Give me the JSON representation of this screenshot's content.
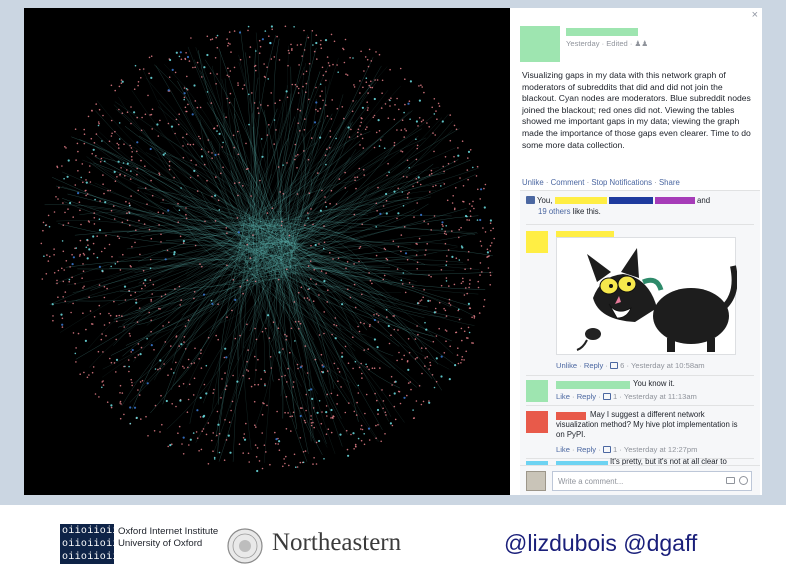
{
  "graph": {
    "colors": {
      "background": "#000000",
      "edge": "#5fb8b4",
      "node": "#e8808a",
      "cyan_node": "#6ee3e6",
      "blue_node": "#3b7dd8"
    }
  },
  "post": {
    "meta": "Yesterday · Edited · ",
    "text": "Visualizing gaps in my data with this network graph of moderators of subreddits that did and did not join the blackout. Cyan nodes are moderators. Blue subreddit nodes joined the blackout; red ones did not. Viewing the tables showed me important gaps in my data; viewing the graph made the importance of those gaps even clearer. Time to do some more data collection.",
    "actions": [
      "Unlike",
      "Comment",
      "Stop Notifications",
      "Share"
    ],
    "redacted_colors": {
      "green": "#9ee5b0",
      "yellow": "#ffee44",
      "blue": "#1e3a9e",
      "purple": "#a63cb8",
      "red": "#e85a4a",
      "cyan": "#6dd3f2",
      "cat_yellow": "#f6e84c"
    }
  },
  "likes": {
    "prefix": "You,",
    "and_word": "and",
    "others_link": "19 others",
    "suffix": "like this."
  },
  "comments": [
    {
      "meta": {
        "unlike": "Unlike",
        "reply": "Reply",
        "count": "6",
        "time": "Yesterday at 10:58am"
      }
    },
    {
      "text": "You know it.",
      "meta": {
        "like": "Like",
        "reply": "Reply",
        "count": "1",
        "time": "Yesterday at 11:13am"
      }
    },
    {
      "text": "May I suggest a different network visualization method? My hive plot implementation is on PyPI.",
      "meta": {
        "like": "Like",
        "reply": "Reply",
        "count": "1",
        "time": "Yesterday at 12:27pm"
      }
    },
    {
      "text": "It's pretty, but it's not at all clear to"
    }
  ],
  "write_comment": {
    "placeholder": "Write a comment..."
  },
  "footer": {
    "oxford_logo_text": [
      "oiioiioii",
      "oiioiioii",
      "oiioiioii"
    ],
    "oxford_line1": "Oxford Internet Institute",
    "oxford_line2": "University of Oxford",
    "northeastern": "Northeastern",
    "handles": "@lizdubois @dgaff"
  }
}
